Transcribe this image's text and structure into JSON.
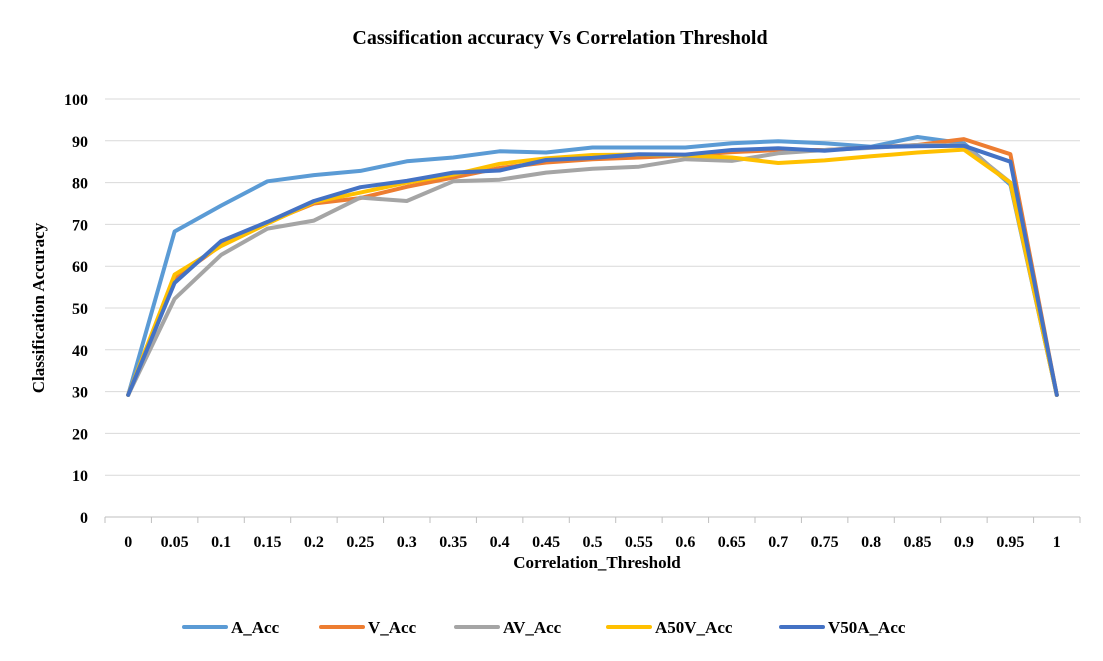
{
  "chart_data": {
    "type": "line",
    "title": "Cassification accuracy Vs Correlation Threshold",
    "xlabel": "Correlation_Threshold",
    "ylabel": "Classification Accuracy",
    "categories": [
      "0",
      "0.05",
      "0.1",
      "0.15",
      "0.2",
      "0.25",
      "0.3",
      "0.35",
      "0.4",
      "0.45",
      "0.5",
      "0.55",
      "0.6",
      "0.65",
      "0.7",
      "0.75",
      "0.8",
      "0.85",
      "0.9",
      "0.95",
      "1"
    ],
    "ylim": [
      0,
      100
    ],
    "yticks": [
      "0",
      "10",
      "20",
      "30",
      "40",
      "50",
      "60",
      "70",
      "80",
      "90",
      "100"
    ],
    "grid": true,
    "legend_position": "bottom",
    "series": [
      {
        "name": "A_Acc",
        "color": "#5B9BD5",
        "values": [
          29.2,
          68.3,
          74.5,
          80.3,
          81.8,
          82.8,
          85.1,
          86.0,
          87.5,
          87.2,
          88.4,
          88.4,
          88.4,
          89.4,
          89.9,
          89.4,
          88.6,
          90.9,
          89.4,
          79.5,
          29.2
        ]
      },
      {
        "name": "V_Acc",
        "color": "#ED7D31",
        "values": [
          29.2,
          57.0,
          65.0,
          70.5,
          75.0,
          76.3,
          79.0,
          81.2,
          83.5,
          84.8,
          85.6,
          86.0,
          86.5,
          87.3,
          87.8,
          87.8,
          88.4,
          89.0,
          90.4,
          86.8,
          29.2
        ]
      },
      {
        "name": "AV_Acc",
        "color": "#A5A5A5",
        "values": [
          29.2,
          52.2,
          62.7,
          69.0,
          70.9,
          76.4,
          75.6,
          80.3,
          80.7,
          82.4,
          83.3,
          83.8,
          85.6,
          85.2,
          87.0,
          87.8,
          88.3,
          89.0,
          88.9,
          80.0,
          29.2
        ]
      },
      {
        "name": "A50V_Acc",
        "color": "#FFC000",
        "values": [
          29.2,
          58.0,
          64.8,
          70.2,
          75.3,
          77.6,
          80.0,
          81.9,
          84.5,
          85.8,
          86.6,
          86.7,
          86.5,
          86.0,
          84.7,
          85.3,
          86.3,
          87.2,
          87.9,
          80.0,
          29.2
        ]
      },
      {
        "name": "V50A_Acc",
        "color": "#4472C4",
        "values": [
          29.2,
          56.0,
          66.0,
          70.6,
          75.6,
          78.9,
          80.4,
          82.4,
          82.9,
          85.4,
          85.9,
          86.8,
          86.7,
          87.8,
          88.2,
          87.6,
          88.5,
          88.7,
          88.8,
          85.0,
          29.2
        ]
      }
    ]
  }
}
